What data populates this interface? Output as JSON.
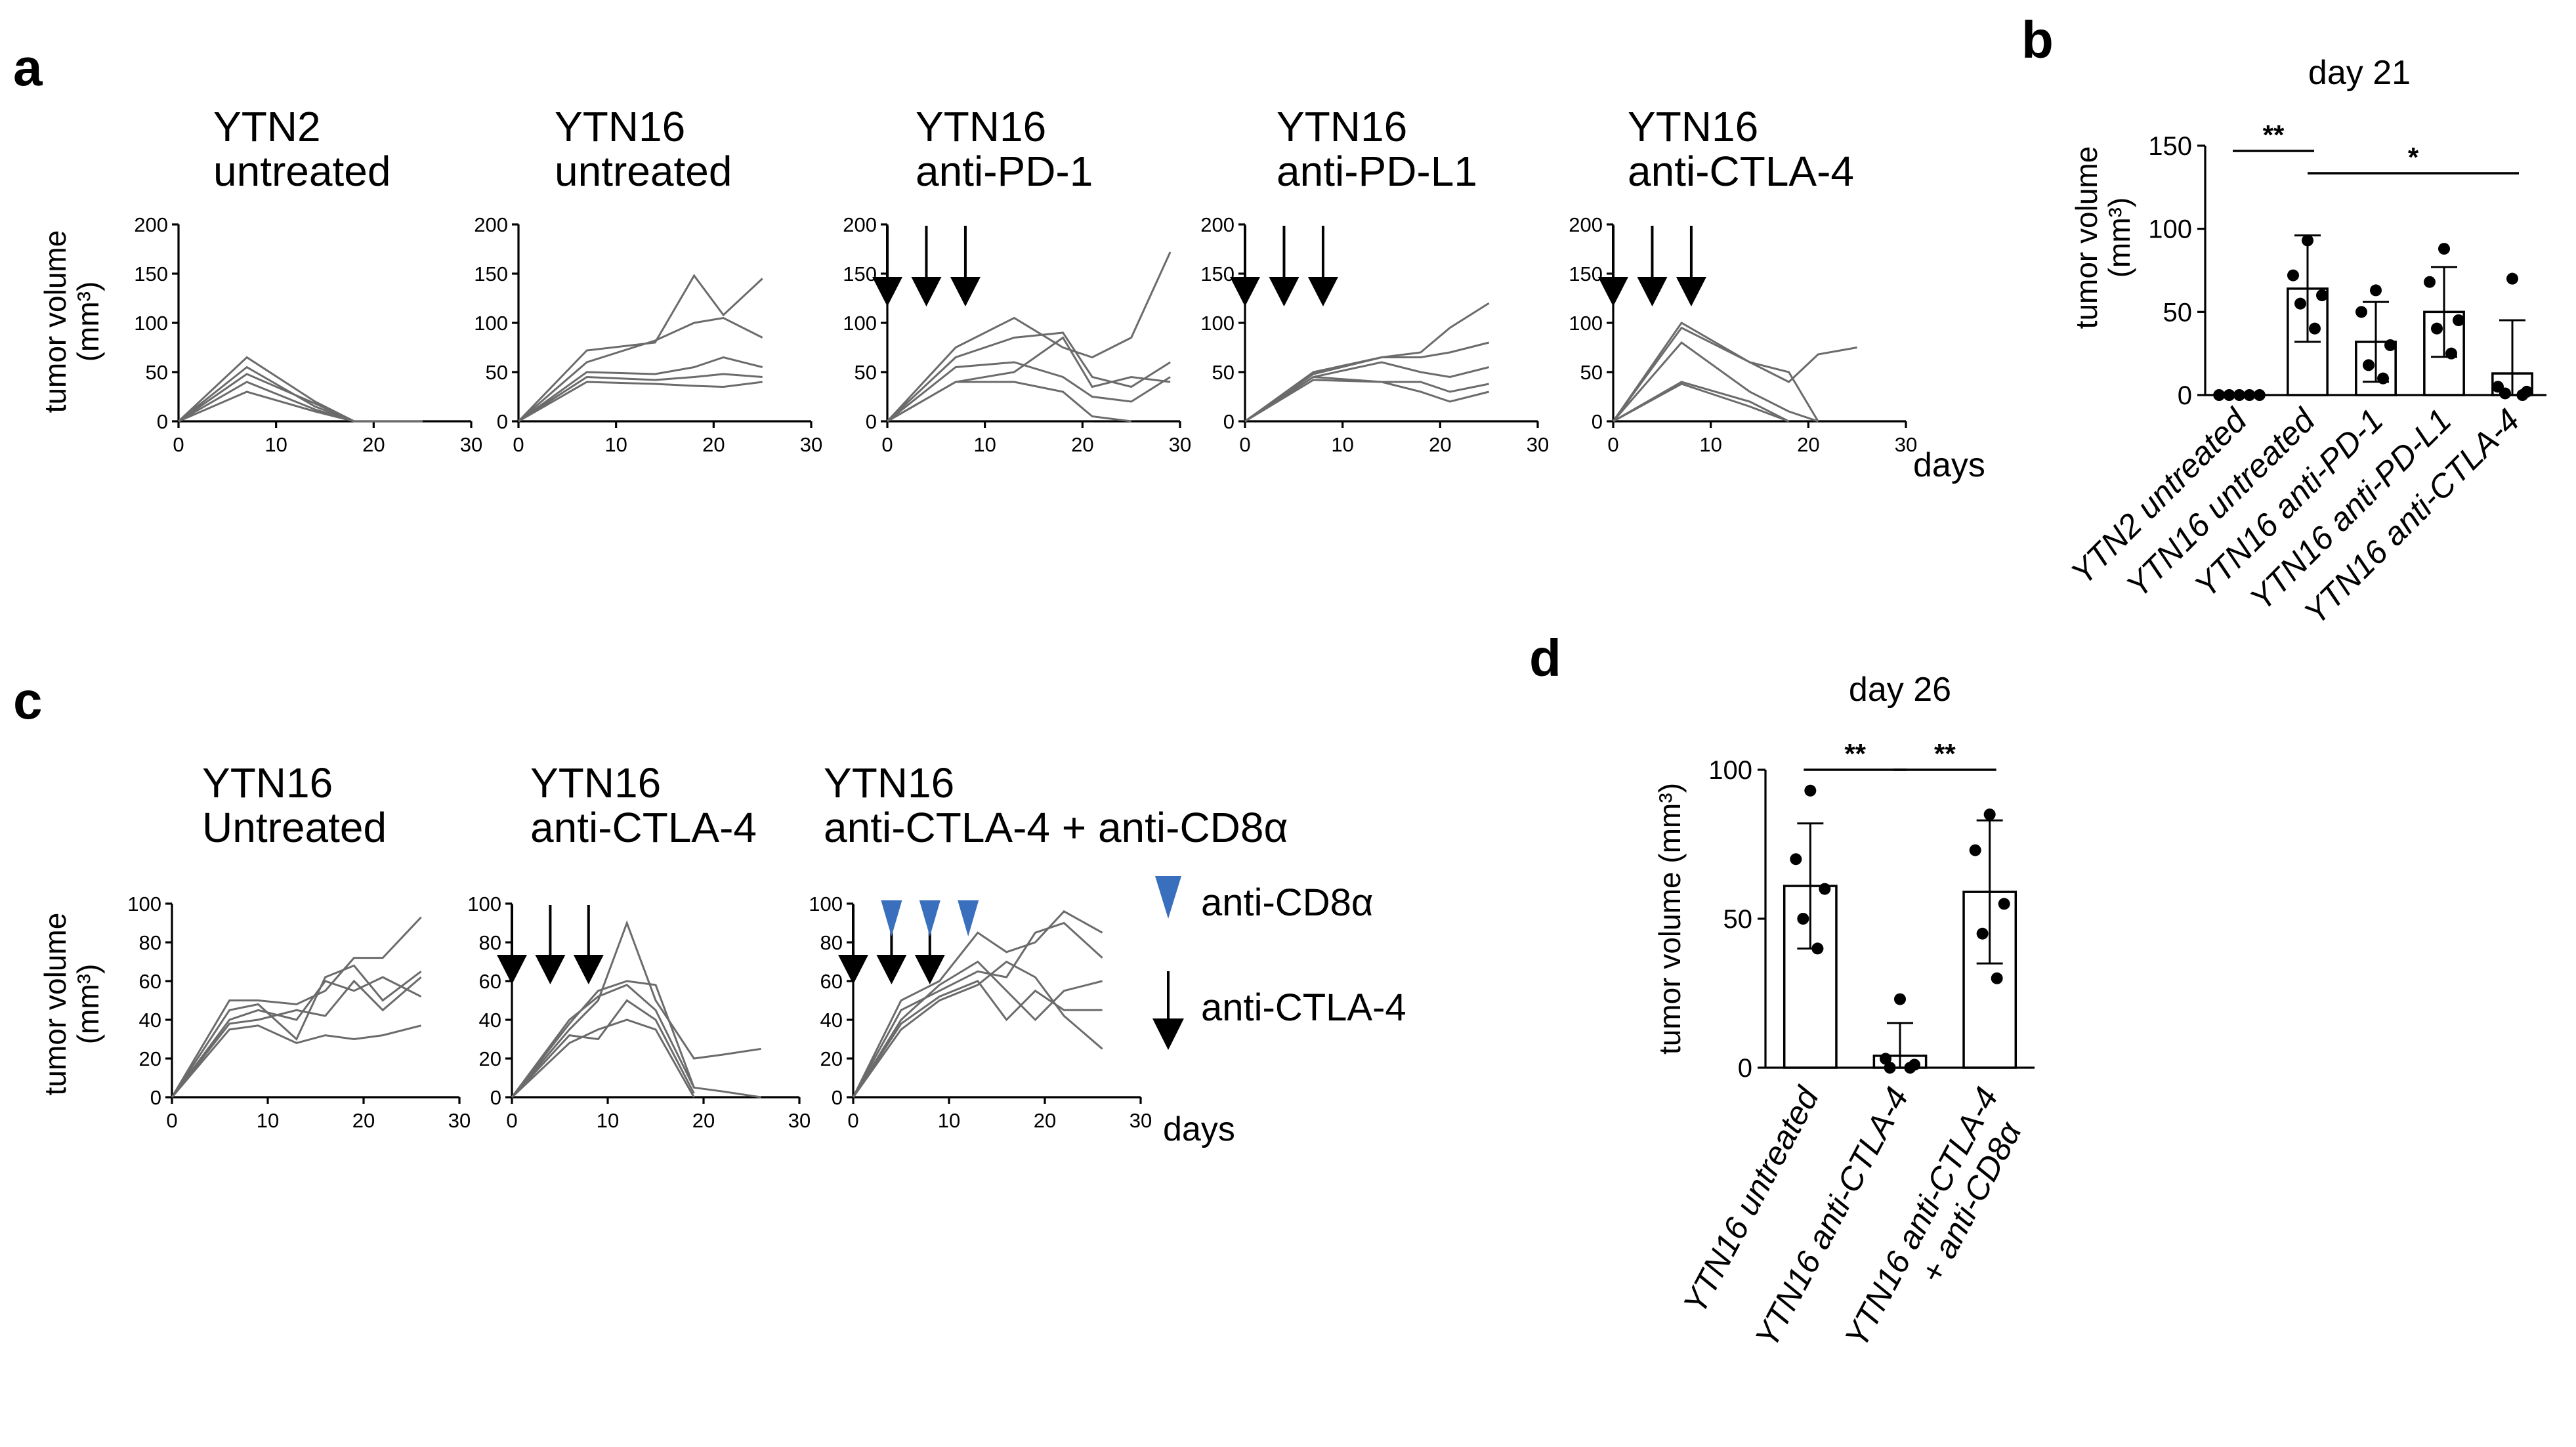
{
  "panels": {
    "a": "a",
    "b": "b",
    "c": "c",
    "d": "d"
  },
  "days_label": "days",
  "ylabel_line1": "tumor volume",
  "ylabel_line2": "(mm³)",
  "ylabel_single": "tumor volume (mm³)",
  "legend": {
    "cd8_label": "anti-CD8α",
    "ctla4_label": "anti-CTLA-4",
    "cd8_color": "#3a6fbe"
  },
  "chart_data": [
    {
      "id": "a1",
      "type": "line",
      "title": [
        "YTN2",
        "untreated"
      ],
      "xlim": [
        0,
        30
      ],
      "ylim": [
        0,
        200
      ],
      "xticks": [
        0,
        10,
        20,
        30
      ],
      "yticks": [
        0,
        50,
        100,
        150,
        200
      ],
      "treatment_days": [],
      "series": [
        {
          "x": [
            0,
            7,
            14,
            18,
            25
          ],
          "y": [
            0,
            65,
            20,
            0,
            0
          ]
        },
        {
          "x": [
            0,
            7,
            14,
            18,
            25
          ],
          "y": [
            0,
            55,
            15,
            0,
            0
          ]
        },
        {
          "x": [
            0,
            7,
            14,
            18,
            25
          ],
          "y": [
            0,
            48,
            18,
            0,
            0
          ]
        },
        {
          "x": [
            0,
            7,
            14,
            18,
            25
          ],
          "y": [
            0,
            40,
            12,
            0,
            0
          ]
        },
        {
          "x": [
            0,
            7,
            14,
            18,
            25
          ],
          "y": [
            0,
            30,
            10,
            0,
            0
          ]
        }
      ]
    },
    {
      "id": "a2",
      "type": "line",
      "title": [
        "YTN16",
        "untreated"
      ],
      "xlim": [
        0,
        30
      ],
      "ylim": [
        0,
        200
      ],
      "xticks": [
        0,
        10,
        20,
        30
      ],
      "yticks": [
        0,
        50,
        100,
        150,
        200
      ],
      "treatment_days": [],
      "series": [
        {
          "x": [
            0,
            7,
            14,
            18,
            21,
            25
          ],
          "y": [
            0,
            72,
            80,
            148,
            108,
            145
          ]
        },
        {
          "x": [
            0,
            7,
            14,
            18,
            21,
            25
          ],
          "y": [
            0,
            60,
            82,
            100,
            105,
            85
          ]
        },
        {
          "x": [
            0,
            7,
            14,
            18,
            21,
            25
          ],
          "y": [
            0,
            50,
            48,
            55,
            65,
            55
          ]
        },
        {
          "x": [
            0,
            7,
            14,
            18,
            21,
            25
          ],
          "y": [
            0,
            45,
            42,
            45,
            48,
            45
          ]
        },
        {
          "x": [
            0,
            7,
            14,
            18,
            21,
            25
          ],
          "y": [
            0,
            40,
            38,
            36,
            35,
            40
          ]
        }
      ]
    },
    {
      "id": "a3",
      "type": "line",
      "title": [
        "YTN16",
        "anti-PD-1"
      ],
      "xlim": [
        0,
        30
      ],
      "ylim": [
        0,
        200
      ],
      "xticks": [
        0,
        10,
        20,
        30
      ],
      "yticks": [
        0,
        50,
        100,
        150,
        200
      ],
      "treatment_days": [
        0,
        4,
        8
      ],
      "series": [
        {
          "x": [
            0,
            7,
            13,
            18,
            21,
            25,
            29
          ],
          "y": [
            0,
            75,
            105,
            75,
            65,
            85,
            172
          ]
        },
        {
          "x": [
            0,
            7,
            13,
            18,
            21,
            25,
            29
          ],
          "y": [
            0,
            65,
            85,
            90,
            45,
            35,
            60
          ]
        },
        {
          "x": [
            0,
            7,
            13,
            18,
            21,
            25,
            29
          ],
          "y": [
            0,
            55,
            60,
            45,
            25,
            20,
            45
          ]
        },
        {
          "x": [
            0,
            7,
            13,
            18,
            21,
            25,
            29
          ],
          "y": [
            0,
            40,
            50,
            85,
            35,
            45,
            40
          ]
        },
        {
          "x": [
            0,
            7,
            13,
            18,
            21,
            25
          ],
          "y": [
            0,
            40,
            40,
            30,
            5,
            0
          ]
        }
      ]
    },
    {
      "id": "a4",
      "type": "line",
      "title": [
        "YTN16",
        "anti-PD-L1"
      ],
      "xlim": [
        0,
        30
      ],
      "ylim": [
        0,
        200
      ],
      "xticks": [
        0,
        10,
        20,
        30
      ],
      "yticks": [
        0,
        50,
        100,
        150,
        200
      ],
      "treatment_days": [
        0,
        4,
        8
      ],
      "series": [
        {
          "x": [
            0,
            7,
            14,
            18,
            21,
            25
          ],
          "y": [
            0,
            50,
            65,
            70,
            95,
            120
          ]
        },
        {
          "x": [
            0,
            7,
            14,
            18,
            21,
            25
          ],
          "y": [
            0,
            48,
            65,
            65,
            70,
            80
          ]
        },
        {
          "x": [
            0,
            7,
            14,
            18,
            21,
            25
          ],
          "y": [
            0,
            45,
            60,
            50,
            45,
            55
          ]
        },
        {
          "x": [
            0,
            7,
            14,
            18,
            21,
            25
          ],
          "y": [
            0,
            45,
            40,
            40,
            30,
            38
          ]
        },
        {
          "x": [
            0,
            7,
            14,
            18,
            21,
            25
          ],
          "y": [
            0,
            42,
            40,
            30,
            20,
            30
          ]
        }
      ]
    },
    {
      "id": "a5",
      "type": "line",
      "title": [
        "YTN16",
        "anti-CTLA-4"
      ],
      "xlim": [
        0,
        30
      ],
      "ylim": [
        0,
        200
      ],
      "xticks": [
        0,
        10,
        20,
        30
      ],
      "yticks": [
        0,
        50,
        100,
        150,
        200
      ],
      "treatment_days": [
        0,
        4,
        8
      ],
      "series": [
        {
          "x": [
            0,
            7,
            14,
            18,
            21,
            25
          ],
          "y": [
            0,
            100,
            60,
            40,
            68,
            75
          ]
        },
        {
          "x": [
            0,
            7,
            14,
            18,
            21
          ],
          "y": [
            0,
            95,
            60,
            50,
            0
          ]
        },
        {
          "x": [
            0,
            7,
            14,
            18,
            21
          ],
          "y": [
            0,
            80,
            30,
            10,
            0
          ]
        },
        {
          "x": [
            0,
            7,
            14,
            18
          ],
          "y": [
            0,
            40,
            20,
            0
          ]
        },
        {
          "x": [
            0,
            7,
            14,
            18
          ],
          "y": [
            0,
            38,
            15,
            0
          ]
        }
      ]
    },
    {
      "id": "b",
      "type": "bar",
      "title": "day 21",
      "categories": [
        "YTN2 untreated",
        "YTN16 untreated",
        "YTN16 anti-PD-1",
        "YTN16 anti-PD-L1",
        "YTN16 anti-CTLA-4"
      ],
      "values": [
        0,
        64,
        32,
        50,
        13
      ],
      "errors": [
        0,
        32,
        24,
        27,
        32
      ],
      "points": [
        [
          0,
          0,
          0,
          0,
          0
        ],
        [
          93,
          72,
          60,
          55,
          40
        ],
        [
          63,
          50,
          30,
          18,
          10
        ],
        [
          88,
          68,
          45,
          40,
          25
        ],
        [
          70,
          5,
          2,
          1,
          0
        ]
      ],
      "ylim": [
        0,
        150
      ],
      "yticks": [
        0,
        50,
        100,
        150
      ],
      "significance": [
        {
          "from": 0,
          "to": 1,
          "label": "**"
        },
        {
          "from": 1,
          "to": 4,
          "label": "*"
        }
      ]
    },
    {
      "id": "c1",
      "type": "line",
      "title": [
        "YTN16",
        "Untreated"
      ],
      "xlim": [
        0,
        30
      ],
      "ylim": [
        0,
        100
      ],
      "xticks": [
        0,
        10,
        20,
        30
      ],
      "yticks": [
        0,
        20,
        40,
        60,
        80,
        100
      ],
      "treatment_days": [],
      "cd8_days": [],
      "series": [
        {
          "x": [
            0,
            6,
            9,
            13,
            16,
            19,
            22,
            26
          ],
          "y": [
            0,
            50,
            50,
            48,
            55,
            72,
            72,
            93
          ]
        },
        {
          "x": [
            0,
            6,
            9,
            13,
            16,
            19,
            22,
            26
          ],
          "y": [
            0,
            45,
            48,
            30,
            62,
            68,
            50,
            65
          ]
        },
        {
          "x": [
            0,
            6,
            9,
            13,
            16,
            19,
            22,
            26
          ],
          "y": [
            0,
            40,
            45,
            40,
            60,
            55,
            62,
            52
          ]
        },
        {
          "x": [
            0,
            6,
            9,
            13,
            16,
            19,
            22,
            26
          ],
          "y": [
            0,
            38,
            40,
            45,
            42,
            60,
            45,
            62
          ]
        },
        {
          "x": [
            0,
            6,
            9,
            13,
            16,
            19,
            22,
            26
          ],
          "y": [
            0,
            35,
            37,
            28,
            32,
            30,
            32,
            37
          ]
        }
      ]
    },
    {
      "id": "c2",
      "type": "line",
      "title": [
        "YTN16",
        "anti-CTLA-4"
      ],
      "xlim": [
        0,
        30
      ],
      "ylim": [
        0,
        100
      ],
      "xticks": [
        0,
        10,
        20,
        30
      ],
      "yticks": [
        0,
        20,
        40,
        60,
        80,
        100
      ],
      "treatment_days": [
        0,
        4,
        8
      ],
      "cd8_days": [],
      "series": [
        {
          "x": [
            0,
            6,
            9,
            12,
            15,
            19,
            22,
            26
          ],
          "y": [
            0,
            35,
            50,
            90,
            50,
            20,
            22,
            25
          ]
        },
        {
          "x": [
            0,
            6,
            9,
            12,
            15,
            19
          ],
          "y": [
            0,
            38,
            55,
            60,
            58,
            5
          ]
        },
        {
          "x": [
            0,
            6,
            9,
            12,
            15,
            19,
            22,
            26
          ],
          "y": [
            0,
            40,
            52,
            58,
            45,
            5,
            3,
            0
          ]
        },
        {
          "x": [
            0,
            6,
            9,
            12,
            15,
            19
          ],
          "y": [
            0,
            32,
            30,
            50,
            40,
            2
          ]
        },
        {
          "x": [
            0,
            6,
            9,
            12,
            15,
            19
          ],
          "y": [
            0,
            28,
            35,
            40,
            35,
            0
          ]
        }
      ]
    },
    {
      "id": "c3",
      "type": "line",
      "title": [
        "YTN16",
        "anti-CTLA-4 + anti-CD8α"
      ],
      "xlim": [
        0,
        30
      ],
      "ylim": [
        0,
        100
      ],
      "xticks": [
        0,
        10,
        20,
        30
      ],
      "yticks": [
        0,
        20,
        40,
        60,
        80,
        100
      ],
      "treatment_days": [
        0,
        4,
        8
      ],
      "cd8_days": [
        4,
        8,
        12
      ],
      "series": [
        {
          "x": [
            0,
            5,
            9,
            13,
            16,
            19,
            22,
            26
          ],
          "y": [
            0,
            50,
            60,
            85,
            75,
            80,
            96,
            85
          ]
        },
        {
          "x": [
            0,
            5,
            9,
            13,
            16,
            19,
            22,
            26
          ],
          "y": [
            0,
            45,
            55,
            65,
            62,
            85,
            90,
            72
          ]
        },
        {
          "x": [
            0,
            5,
            9,
            13,
            16,
            19,
            22,
            26
          ],
          "y": [
            0,
            40,
            58,
            70,
            55,
            40,
            55,
            60
          ]
        },
        {
          "x": [
            0,
            5,
            9,
            13,
            16,
            19,
            22,
            26
          ],
          "y": [
            0,
            38,
            52,
            60,
            40,
            55,
            45,
            45
          ]
        },
        {
          "x": [
            0,
            5,
            9,
            13,
            16,
            19,
            22,
            26
          ],
          "y": [
            0,
            35,
            50,
            58,
            70,
            62,
            42,
            25
          ]
        }
      ]
    },
    {
      "id": "d",
      "type": "bar",
      "title": "day 26",
      "categories": [
        "YTN16 untreated",
        "YTN16 anti-CTLA-4",
        "YTN16 anti-CTLA-4\n+ anti-CD8α"
      ],
      "values": [
        61,
        4,
        59
      ],
      "errors": [
        21,
        11,
        24
      ],
      "points": [
        [
          93,
          70,
          60,
          50,
          40
        ],
        [
          23,
          3,
          1,
          0,
          0
        ],
        [
          85,
          73,
          55,
          45,
          30
        ]
      ],
      "ylim": [
        0,
        100
      ],
      "yticks": [
        0,
        50,
        100
      ],
      "significance": [
        {
          "from": 0,
          "to": 1,
          "label": "**"
        },
        {
          "from": 1,
          "to": 2,
          "label": "**"
        }
      ]
    }
  ]
}
